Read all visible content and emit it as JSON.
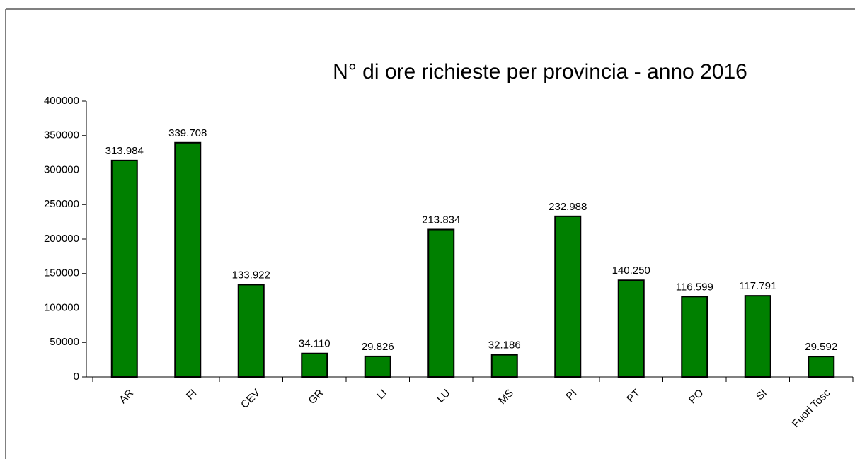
{
  "chart_data": {
    "type": "bar",
    "title": "N° di ore richieste per provincia - anno 2016",
    "categories": [
      "AR",
      "FI",
      "CEV",
      "GR",
      "LI",
      "LU",
      "MS",
      "PI",
      "PT",
      "PO",
      "SI",
      "Fuori Tosc"
    ],
    "values": [
      313984,
      339708,
      133922,
      34110,
      29826,
      213834,
      32186,
      232988,
      140250,
      116599,
      117791,
      29592
    ],
    "value_labels": [
      "313.984",
      "339.708",
      "133.922",
      "34.110",
      "29.826",
      "213.834",
      "32.186",
      "232.988",
      "140.250",
      "116.599",
      "117.791",
      "29.592"
    ],
    "color": "#008000",
    "ylim": [
      0,
      400000
    ],
    "yticks": [
      0,
      50000,
      100000,
      150000,
      200000,
      250000,
      300000,
      350000,
      400000
    ],
    "grid": false
  }
}
